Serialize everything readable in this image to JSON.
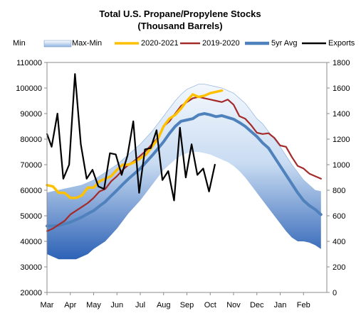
{
  "chart_data": {
    "type": "line",
    "title": "Total U.S. Propane/Propylene Stocks",
    "subtitle": "(Thousand Barrels)",
    "xlabel": "",
    "ylabel": "",
    "x_ticks": [
      "Mar",
      "Apr",
      "May",
      "Jun",
      "Jul",
      "Aug",
      "Sep",
      "Oct",
      "Nov",
      "Dec",
      "Jan",
      "Feb"
    ],
    "y_left": {
      "min": 20000,
      "max": 110000,
      "step": 10000,
      "ticks": [
        "20000",
        "30000",
        "40000",
        "50000",
        "60000",
        "70000",
        "80000",
        "90000",
        "100000",
        "110000"
      ]
    },
    "y_right": {
      "min": 0,
      "max": 1800,
      "step": 200,
      "ticks": [
        "0",
        "200",
        "400",
        "600",
        "800",
        "1000",
        "1200",
        "1400",
        "1600",
        "1800"
      ]
    },
    "grid": false,
    "legend_position": "top",
    "legend": [
      {
        "label": "Min",
        "kind": "none",
        "color": "#ffffff"
      },
      {
        "label": "Max-Min",
        "kind": "box",
        "color": "#9bbce4"
      },
      {
        "label": "2020-2021",
        "kind": "line",
        "color": "#ffc000"
      },
      {
        "label": "2019-2020",
        "kind": "line",
        "color": "#a52a2a"
      },
      {
        "label": "5yr Avg",
        "kind": "line",
        "color": "#4f81bd"
      },
      {
        "label": "Exports",
        "kind": "line",
        "color": "#000000"
      }
    ],
    "series": [
      {
        "name": "Max",
        "axis": "left",
        "color": "#9bbce4",
        "x": [
          0,
          0.25,
          0.5,
          0.75,
          1,
          1.25,
          1.5,
          1.75,
          2,
          2.25,
          2.5,
          2.75,
          3,
          3.25,
          3.5,
          3.75,
          4,
          4.25,
          4.5,
          4.75,
          5,
          5.25,
          5.5,
          5.75,
          6,
          6.25,
          6.5,
          6.75,
          7,
          7.25,
          7.5,
          7.75,
          8,
          8.25,
          8.5,
          8.75,
          9,
          9.25,
          9.5,
          9.75,
          10,
          10.25,
          10.5,
          10.75,
          11,
          11.25,
          11.5,
          11.75
        ],
        "values": [
          59000,
          59500,
          60000,
          60500,
          61000,
          61500,
          62000,
          63000,
          64000,
          65500,
          67000,
          68500,
          70000,
          72000,
          74000,
          76000,
          78000,
          80500,
          83000,
          86000,
          89000,
          92000,
          95000,
          97500,
          99500,
          100500,
          101500,
          101500,
          101000,
          100500,
          100000,
          99000,
          98000,
          96000,
          94000,
          91000,
          88000,
          86000,
          83000,
          80000,
          77000,
          73500,
          70000,
          67000,
          64000,
          62000,
          60000,
          59500
        ]
      },
      {
        "name": "Min",
        "axis": "left",
        "color": "#2c5aa0",
        "x": [
          0,
          0.25,
          0.5,
          0.75,
          1,
          1.25,
          1.5,
          1.75,
          2,
          2.25,
          2.5,
          2.75,
          3,
          3.25,
          3.5,
          3.75,
          4,
          4.25,
          4.5,
          4.75,
          5,
          5.25,
          5.5,
          5.75,
          6,
          6.25,
          6.5,
          6.75,
          7,
          7.25,
          7.5,
          7.75,
          8,
          8.25,
          8.5,
          8.75,
          9,
          9.25,
          9.5,
          9.75,
          10,
          10.25,
          10.5,
          10.75,
          11,
          11.25,
          11.5,
          11.75
        ],
        "values": [
          35000,
          34000,
          33000,
          33000,
          33000,
          33000,
          34000,
          35000,
          37000,
          38500,
          40000,
          42500,
          45000,
          48000,
          51000,
          53500,
          56000,
          59000,
          62000,
          65000,
          68000,
          70000,
          72000,
          73500,
          74500,
          75000,
          75000,
          74500,
          74000,
          73000,
          72000,
          71000,
          69500,
          67500,
          65000,
          62000,
          59000,
          56000,
          53000,
          50000,
          47000,
          44000,
          41500,
          40000,
          40000,
          39500,
          38500,
          37000
        ]
      },
      {
        "name": "5yr Avg",
        "axis": "left",
        "color": "#4f81bd",
        "x": [
          0,
          0.25,
          0.5,
          0.75,
          1,
          1.25,
          1.5,
          1.75,
          2,
          2.25,
          2.5,
          2.75,
          3,
          3.25,
          3.5,
          3.75,
          4,
          4.25,
          4.5,
          4.75,
          5,
          5.25,
          5.5,
          5.75,
          6,
          6.25,
          6.5,
          6.75,
          7,
          7.25,
          7.5,
          7.75,
          8,
          8.25,
          8.5,
          8.75,
          9,
          9.25,
          9.5,
          9.75,
          10,
          10.25,
          10.5,
          10.75,
          11,
          11.25,
          11.5,
          11.75
        ],
        "values": [
          46000,
          46000,
          46200,
          46800,
          47500,
          48500,
          49500,
          50800,
          52000,
          53800,
          55500,
          57800,
          60000,
          62300,
          64500,
          66500,
          68500,
          71000,
          73500,
          76200,
          79000,
          82200,
          85000,
          87000,
          87500,
          88000,
          89500,
          90000,
          89500,
          88800,
          89200,
          88500,
          87800,
          86500,
          85000,
          83000,
          81000,
          78500,
          76500,
          73000,
          69500,
          66000,
          62500,
          59000,
          56000,
          54000,
          52500,
          50500
        ]
      },
      {
        "name": "2019-2020",
        "axis": "left",
        "color": "#a52a2a",
        "x": [
          0,
          0.25,
          0.5,
          0.75,
          1,
          1.25,
          1.5,
          1.75,
          2,
          2.25,
          2.5,
          2.75,
          3,
          3.25,
          3.5,
          3.75,
          4,
          4.25,
          4.5,
          4.75,
          5,
          5.25,
          5.5,
          5.75,
          6,
          6.25,
          6.5,
          6.75,
          7,
          7.25,
          7.5,
          7.75,
          8,
          8.25,
          8.5,
          8.75,
          9,
          9.25,
          9.5,
          9.75,
          10,
          10.25,
          10.5,
          10.75,
          11,
          11.25,
          11.5,
          11.75
        ],
        "values": [
          44000,
          45000,
          46500,
          48000,
          50500,
          52000,
          53500,
          55000,
          57000,
          59500,
          60500,
          63500,
          65500,
          68000,
          70000,
          71500,
          73500,
          75500,
          78000,
          80500,
          85000,
          87000,
          90000,
          93000,
          94500,
          96000,
          96500,
          96000,
          95500,
          95000,
          94500,
          95500,
          93500,
          89000,
          88000,
          85500,
          82500,
          82000,
          82300,
          80500,
          77500,
          77000,
          73000,
          69500,
          68500,
          66500,
          65500,
          64500
        ]
      },
      {
        "name": "2020-2021",
        "axis": "left",
        "color": "#ffc000",
        "x": [
          0,
          0.25,
          0.5,
          0.75,
          1,
          1.25,
          1.5,
          1.75,
          2,
          2.25,
          2.5,
          2.75,
          3,
          3.25,
          3.5,
          3.75,
          4,
          4.25,
          4.5,
          4.75,
          5,
          5.25,
          5.5,
          5.75,
          6,
          6.25,
          6.5,
          6.75,
          7,
          7.25,
          7.5
        ],
        "values": [
          62000,
          61500,
          59000,
          59000,
          57000,
          57000,
          58000,
          61000,
          61000,
          63500,
          64500,
          65500,
          68000,
          70000,
          70000,
          71000,
          72500,
          74000,
          77000,
          80000,
          85000,
          88000,
          89500,
          92000,
          95000,
          97500,
          96500,
          97000,
          98000,
          98500,
          99000
        ]
      },
      {
        "name": "Exports",
        "axis": "right",
        "color": "#000000",
        "x": [
          0,
          0.2,
          0.45,
          0.7,
          0.95,
          1.2,
          1.45,
          1.7,
          1.95,
          2.2,
          2.45,
          2.7,
          2.95,
          3.2,
          3.45,
          3.7,
          3.95,
          4.2,
          4.45,
          4.7,
          4.95,
          5.2,
          5.45,
          5.7,
          5.95,
          6.2,
          6.45,
          6.7,
          6.95,
          7.2
        ],
        "values": [
          1240,
          1140,
          1400,
          890,
          1000,
          1710,
          1160,
          890,
          960,
          830,
          810,
          1090,
          1080,
          920,
          1070,
          1340,
          780,
          1120,
          1130,
          1270,
          880,
          950,
          720,
          1290,
          900,
          1160,
          920,
          970,
          790,
          1000
        ]
      }
    ]
  }
}
